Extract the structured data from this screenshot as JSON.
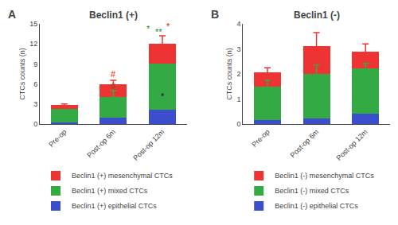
{
  "chart_data": [
    {
      "type": "bar",
      "stacked": true,
      "label": "A",
      "title": "Beclin1 (+)",
      "categories": [
        "Pre-op",
        "Post-op 6m",
        "Post-op 12m"
      ],
      "series": [
        {
          "name": "Beclin1 (+) epithelial CTCs",
          "color": "#3B4FCC",
          "values": [
            0.2,
            1.0,
            2.2
          ]
        },
        {
          "name": "Beclin1 (+) mixed CTCs",
          "color": "#33AA44",
          "values": [
            2.1,
            3.0,
            6.8
          ]
        },
        {
          "name": "Beclin1 (+) mesenchymal CTCs",
          "color": "#EE3333",
          "values": [
            0.5,
            2.0,
            3.0
          ]
        }
      ],
      "error_bars": [
        {
          "color": "#33AA44",
          "values": [
            1.7,
            4.5,
            3.0
          ],
          "errors": [
            0.15,
            0.5,
            0.7
          ]
        },
        {
          "color": "#EE3333",
          "values": [
            2.8,
            6.0,
            12.0
          ],
          "errors": [
            0.2,
            0.55,
            1.2
          ]
        }
      ],
      "ylabel": "CTCs counts (n)",
      "ylim": [
        0,
        15
      ],
      "yticks": [
        0,
        3,
        6,
        9,
        12,
        15
      ],
      "grid": false,
      "annotations": [
        {
          "text": "#",
          "x": 1,
          "y": 6.6,
          "color": "#FF0000"
        },
        {
          "text": "#",
          "x": 1,
          "y": 4.8,
          "color": "#8B4513"
        },
        {
          "text": "*",
          "x": 2.12,
          "y": 13.7,
          "color": "#FF0000"
        },
        {
          "text": "**",
          "x": 1.92,
          "y": 12.85,
          "color": "#228B22"
        },
        {
          "text": "*",
          "x": 1.72,
          "y": 13.3,
          "color": "#228B22"
        },
        {
          "text": "*",
          "x": 2,
          "y": 3.2,
          "color": "#000066"
        }
      ]
    },
    {
      "type": "bar",
      "stacked": true,
      "label": "B",
      "title": "Beclin1 (-)",
      "categories": [
        "Pre-op",
        "Post-op 6m",
        "Post-op 12m"
      ],
      "series": [
        {
          "name": "Beclin1 (-) epithelial CTCs",
          "color": "#3B4FCC",
          "values": [
            0.15,
            0.22,
            0.42
          ]
        },
        {
          "name": "Beclin1 (-) mixed CTCs",
          "color": "#33AA44",
          "values": [
            1.35,
            1.78,
            1.8
          ]
        },
        {
          "name": "Beclin1 (-) mesenchymal CTCs",
          "color": "#EE3333",
          "values": [
            0.55,
            1.1,
            0.68
          ]
        }
      ],
      "error_bars": [
        {
          "color": "#33AA44",
          "values": [
            1.5,
            2.0,
            2.22
          ],
          "errors": [
            0.25,
            0.35,
            0.2
          ]
        },
        {
          "color": "#EE3333",
          "values": [
            2.05,
            3.1,
            2.9
          ],
          "errors": [
            0.2,
            0.55,
            0.3
          ]
        }
      ],
      "ylabel": "CTCs counts (n)",
      "ylim": [
        0,
        4
      ],
      "yticks": [
        0,
        1,
        2,
        3,
        4
      ],
      "grid": false,
      "annotations": []
    }
  ]
}
